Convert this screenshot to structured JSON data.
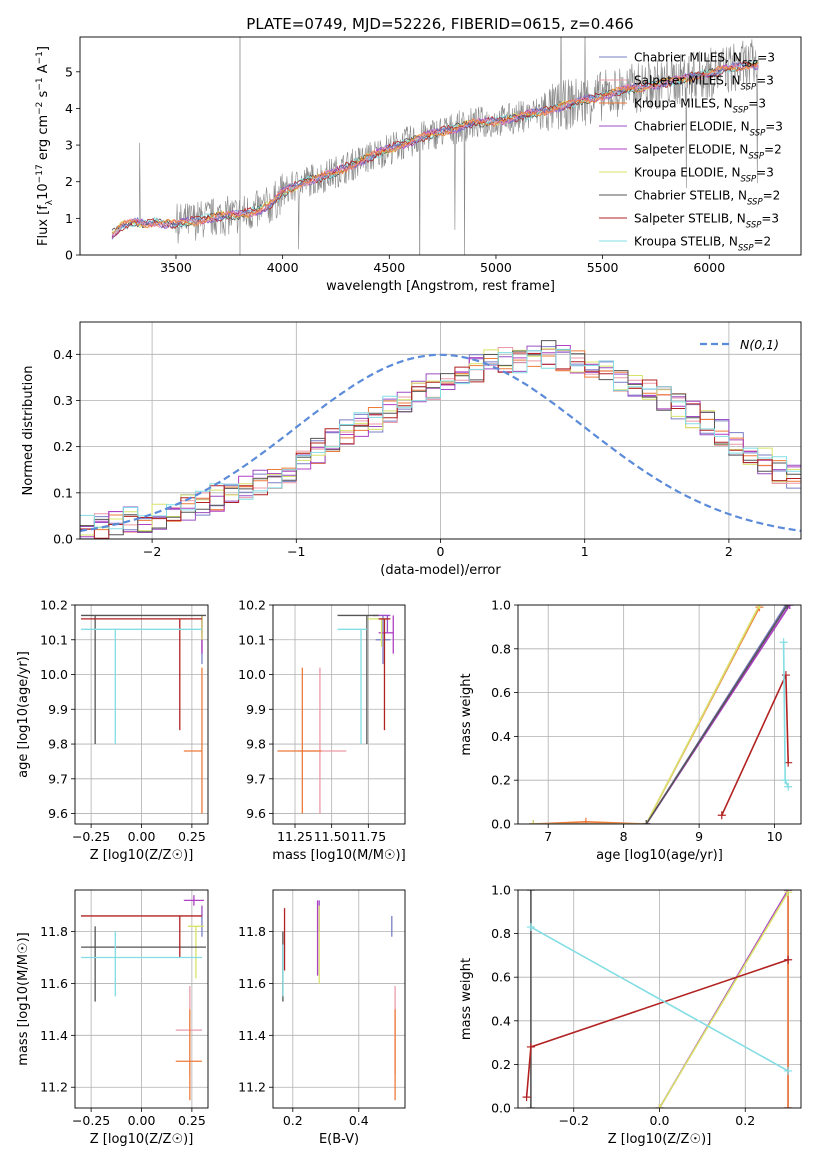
{
  "title": "PLATE=0749, MJD=52226, FIBERID=0615, z=0.466",
  "colors": {
    "Chabrier MILES": "#7a7fc8",
    "Salpeter MILES": "#ec9aa8",
    "Kroupa MILES": "#ee7b3a",
    "Chabrier ELODIE": "#9a4fc4",
    "Salpeter ELODIE": "#b040c4",
    "Kroupa ELODIE": "#d8e36a",
    "Chabrier STELIB": "#555555",
    "Salpeter STELIB": "#b22222",
    "Kroupa STELIB": "#82dde4",
    "data": "#888888",
    "gaussian": "#5b8bd9"
  },
  "chart_data": [
    {
      "id": "spectrum",
      "type": "line",
      "title": "PLATE=0749, MJD=52226, FIBERID=0615, z=0.466",
      "xlabel": "wavelength [Angstrom, rest frame]",
      "ylabel": "Flux [f_λ 10^-17 erg cm^-2 s^-1 A^-1]",
      "xlim": [
        3050,
        6430
      ],
      "ylim": [
        0,
        5.95
      ],
      "xticks": [
        3500,
        4000,
        4500,
        5000,
        5500,
        6000
      ],
      "yticks": [
        0,
        1,
        2,
        3,
        4,
        5
      ],
      "legend_position": "upper-right",
      "legend": [
        {
          "name": "Chabrier MILES",
          "nssp": "3"
        },
        {
          "name": "Salpeter MILES",
          "nssp": "3"
        },
        {
          "name": "Kroupa MILES",
          "nssp": "3"
        },
        {
          "name": "Chabrier ELODIE",
          "nssp": "3"
        },
        {
          "name": "Salpeter ELODIE",
          "nssp": "2"
        },
        {
          "name": "Kroupa ELODIE",
          "nssp": "3"
        },
        {
          "name": "Chabrier STELIB",
          "nssp": "2"
        },
        {
          "name": "Salpeter STELIB",
          "nssp": "3"
        },
        {
          "name": "Kroupa STELIB",
          "nssp": "2"
        }
      ],
      "model_continuum": {
        "x": [
          3200,
          3250,
          3300,
          3350,
          3400,
          3450,
          3500,
          3600,
          3700,
          3800,
          3900,
          3950,
          4000,
          4100,
          4200,
          4300,
          4400,
          4500,
          4600,
          4700,
          4800,
          4900,
          5000,
          5100,
          5200,
          5300,
          5400,
          5500,
          5600,
          5700,
          5800,
          5900,
          6000,
          6100,
          6200
        ],
        "y": [
          0.55,
          0.8,
          0.9,
          0.85,
          0.9,
          0.85,
          0.85,
          0.95,
          1.05,
          1.1,
          1.25,
          1.4,
          1.7,
          2.0,
          2.15,
          2.4,
          2.65,
          2.9,
          3.1,
          3.3,
          3.45,
          3.6,
          3.65,
          3.75,
          3.9,
          4.05,
          4.2,
          4.35,
          4.5,
          4.6,
          4.7,
          4.85,
          4.95,
          5.1,
          5.2
        ]
      }
    },
    {
      "id": "residuals",
      "type": "histogram",
      "xlabel": "(data-model)/error",
      "ylabel": "Normed distribution",
      "xlim": [
        -2.5,
        2.5
      ],
      "ylim": [
        0,
        0.47
      ],
      "xticks": [
        -2,
        -1,
        0,
        1,
        2
      ],
      "yticks": [
        0.0,
        0.1,
        0.2,
        0.3,
        0.4
      ],
      "legend_position": "upper-right",
      "gaussian_label": "N(0,1)",
      "bin_width": 0.1,
      "base_values": [
        0.03,
        0.03,
        0.03,
        0.04,
        0.04,
        0.05,
        0.06,
        0.07,
        0.08,
        0.09,
        0.1,
        0.11,
        0.12,
        0.13,
        0.15,
        0.17,
        0.19,
        0.21,
        0.23,
        0.25,
        0.26,
        0.28,
        0.3,
        0.32,
        0.33,
        0.34,
        0.35,
        0.37,
        0.38,
        0.39,
        0.39,
        0.39,
        0.4,
        0.39,
        0.38,
        0.37,
        0.36,
        0.34,
        0.33,
        0.32,
        0.3,
        0.29,
        0.27,
        0.25,
        0.23,
        0.21,
        0.19,
        0.17,
        0.15,
        0.13
      ]
    },
    {
      "id": "age-vs-Z",
      "type": "errorbar",
      "xlabel": "Z [log10(Z/Z☉)]",
      "ylabel": "age [log10(age/yr)]",
      "xlim": [
        -0.33,
        0.33
      ],
      "ylim": [
        9.57,
        10.2
      ],
      "xticks": [
        -0.25,
        0.0,
        0.25
      ],
      "yticks": [
        9.6,
        9.7,
        9.8,
        9.9,
        10.0,
        10.1,
        10.2
      ],
      "points": [
        {
          "model": "Chabrier MILES",
          "x": 0.3,
          "y": 10.1,
          "xerr": [
            0.0,
            0.0
          ],
          "yerr": [
            0.07,
            0.07
          ]
        },
        {
          "model": "Salpeter MILES",
          "x": 0.3,
          "y": 10.12,
          "xerr": [
            0.0,
            0.0
          ],
          "yerr": [
            0.05,
            0.05
          ]
        },
        {
          "model": "Kroupa MILES",
          "x": 0.3,
          "y": 9.78,
          "xerr": [
            0.09,
            0.0
          ],
          "yerr": [
            0.18,
            0.24
          ]
        },
        {
          "model": "Chabrier ELODIE",
          "x": 0.3,
          "y": 10.17,
          "xerr": [
            0.0,
            0.0
          ],
          "yerr": [
            0.05,
            0.0
          ]
        },
        {
          "model": "Salpeter ELODIE",
          "x": 0.3,
          "y": 10.12,
          "xerr": [
            0.0,
            0.0
          ],
          "yerr": [
            0.06,
            0.05
          ]
        },
        {
          "model": "Kroupa ELODIE",
          "x": 0.3,
          "y": 10.17,
          "xerr": [
            0.0,
            0.0
          ],
          "yerr": [
            0.07,
            0.0
          ]
        },
        {
          "model": "Chabrier STELIB",
          "x": -0.23,
          "y": 10.17,
          "xerr": [
            0.07,
            0.55
          ],
          "yerr": [
            0.37,
            0.0
          ]
        },
        {
          "model": "Salpeter STELIB",
          "x": 0.19,
          "y": 10.16,
          "xerr": [
            0.49,
            0.11
          ],
          "yerr": [
            0.32,
            0.0
          ]
        },
        {
          "model": "Kroupa STELIB",
          "x": -0.13,
          "y": 10.13,
          "xerr": [
            0.17,
            0.43
          ],
          "yerr": [
            0.33,
            0.0
          ]
        }
      ]
    },
    {
      "id": "age-vs-mass",
      "type": "errorbar",
      "xlabel": "mass [log10(M/M☉)]",
      "ylabel": "",
      "xlim": [
        11.1,
        12.0
      ],
      "ylim": [
        9.57,
        10.2
      ],
      "xticks": [
        11.25,
        11.5,
        11.75
      ],
      "yticks": [
        9.6,
        9.7,
        9.8,
        9.9,
        10.0,
        10.1,
        10.2
      ],
      "points": [
        {
          "model": "Chabrier MILES",
          "x": 11.85,
          "y": 10.1,
          "xerr": [
            0.05,
            0.05
          ],
          "yerr": [
            0.07,
            0.07
          ]
        },
        {
          "model": "Salpeter MILES",
          "x": 11.42,
          "y": 9.78,
          "xerr": [
            0.15,
            0.18
          ],
          "yerr": [
            0.18,
            0.24
          ]
        },
        {
          "model": "Kroupa MILES",
          "x": 11.3,
          "y": 9.78,
          "xerr": [
            0.17,
            0.13
          ],
          "yerr": [
            0.18,
            0.24
          ]
        },
        {
          "model": "Chabrier ELODIE",
          "x": 11.88,
          "y": 10.17,
          "xerr": [
            0.1,
            0.02
          ],
          "yerr": [
            0.05,
            0.0
          ]
        },
        {
          "model": "Salpeter ELODIE",
          "x": 11.92,
          "y": 10.12,
          "xerr": [
            0.1,
            0.0
          ],
          "yerr": [
            0.06,
            0.05
          ]
        },
        {
          "model": "Kroupa ELODIE",
          "x": 11.84,
          "y": 10.16,
          "xerr": [
            0.1,
            0.02
          ],
          "yerr": [
            0.08,
            0.0
          ]
        },
        {
          "model": "Chabrier STELIB",
          "x": 11.74,
          "y": 10.17,
          "xerr": [
            0.2,
            0.08
          ],
          "yerr": [
            0.37,
            0.0
          ]
        },
        {
          "model": "Salpeter STELIB",
          "x": 11.86,
          "y": 10.16,
          "xerr": [
            0.04,
            0.04
          ],
          "yerr": [
            0.32,
            0.0
          ]
        },
        {
          "model": "Kroupa STELIB",
          "x": 11.7,
          "y": 10.13,
          "xerr": [
            0.16,
            0.04
          ],
          "yerr": [
            0.33,
            0.0
          ]
        }
      ]
    },
    {
      "id": "weight-vs-age",
      "type": "line",
      "xlabel": "age [log10(age/yr)]",
      "ylabel": "mass weight",
      "xlim": [
        6.6,
        10.35
      ],
      "ylim": [
        0,
        1
      ],
      "xticks": [
        7,
        8,
        9,
        10
      ],
      "yticks": [
        0.0,
        0.2,
        0.4,
        0.6,
        0.8,
        1.0
      ],
      "series": [
        {
          "model": "Chabrier MILES",
          "x": [
            6.8,
            7.5,
            8.3,
            10.15
          ],
          "y": [
            0.0,
            0.0,
            0.0,
            1.0
          ]
        },
        {
          "model": "Salpeter MILES",
          "x": [
            6.8,
            7.5,
            8.3,
            9.8
          ],
          "y": [
            0.0,
            0.0,
            0.0,
            1.0
          ]
        },
        {
          "model": "Kroupa MILES",
          "x": [
            6.8,
            7.5,
            8.3,
            9.8
          ],
          "y": [
            0.0,
            0.01,
            0.0,
            0.99
          ]
        },
        {
          "model": "Chabrier ELODIE",
          "x": [
            6.8,
            8.3,
            10.2
          ],
          "y": [
            0.0,
            0.0,
            1.0
          ]
        },
        {
          "model": "Salpeter ELODIE",
          "x": [
            8.3,
            10.2
          ],
          "y": [
            0.0,
            1.0
          ]
        },
        {
          "model": "Kroupa ELODIE",
          "x": [
            6.8,
            8.3,
            9.8
          ],
          "y": [
            0.0,
            0.0,
            1.0
          ]
        },
        {
          "model": "Chabrier STELIB",
          "x": [
            8.3,
            10.17
          ],
          "y": [
            0.0,
            1.0
          ]
        },
        {
          "model": "Salpeter STELIB",
          "x": [
            9.3,
            10.15,
            10.18
          ],
          "y": [
            0.04,
            0.68,
            0.28
          ]
        },
        {
          "model": "Kroupa STELIB",
          "x": [
            10.12,
            10.14,
            10.18
          ],
          "y": [
            0.83,
            0.2,
            0.17
          ]
        }
      ]
    },
    {
      "id": "mass-vs-Z",
      "type": "errorbar",
      "xlabel": "Z [log10(Z/Z☉)]",
      "ylabel": "mass [log10(M/M☉)]",
      "xlim": [
        -0.33,
        0.33
      ],
      "ylim": [
        11.12,
        11.96
      ],
      "xticks": [
        -0.25,
        0.0,
        0.25
      ],
      "yticks": [
        11.2,
        11.4,
        11.6,
        11.8
      ],
      "points": [
        {
          "model": "Chabrier MILES",
          "x": 0.3,
          "y": 11.82,
          "xerr": [
            0.0,
            0.0
          ],
          "yerr": [
            0.04,
            0.04
          ]
        },
        {
          "model": "Salpeter MILES",
          "x": 0.24,
          "y": 11.42,
          "xerr": [
            0.07,
            0.06
          ],
          "yerr": [
            0.17,
            0.17
          ]
        },
        {
          "model": "Kroupa MILES",
          "x": 0.24,
          "y": 11.3,
          "xerr": [
            0.07,
            0.06
          ],
          "yerr": [
            0.15,
            0.2
          ]
        },
        {
          "model": "Chabrier ELODIE",
          "x": 0.3,
          "y": 11.88,
          "xerr": [
            0.0,
            0.0
          ],
          "yerr": [
            0.02,
            0.02
          ]
        },
        {
          "model": "Salpeter ELODIE",
          "x": 0.26,
          "y": 11.92,
          "xerr": [
            0.05,
            0.05
          ],
          "yerr": [
            0.02,
            0.02
          ]
        },
        {
          "model": "Kroupa ELODIE",
          "x": 0.27,
          "y": 11.82,
          "xerr": [
            0.04,
            0.04
          ],
          "yerr": [
            0.2,
            0.0
          ]
        },
        {
          "model": "Chabrier STELIB",
          "x": -0.23,
          "y": 11.74,
          "xerr": [
            0.07,
            0.55
          ],
          "yerr": [
            0.21,
            0.08
          ]
        },
        {
          "model": "Salpeter STELIB",
          "x": 0.19,
          "y": 11.86,
          "xerr": [
            0.49,
            0.11
          ],
          "yerr": [
            0.16,
            0.0
          ]
        },
        {
          "model": "Kroupa STELIB",
          "x": -0.13,
          "y": 11.7,
          "xerr": [
            0.17,
            0.43
          ],
          "yerr": [
            0.15,
            0.1
          ]
        }
      ]
    },
    {
      "id": "mass-vs-ebv",
      "type": "errorbar",
      "xlabel": "E(B-V)",
      "ylabel": "",
      "xlim": [
        0.14,
        0.54
      ],
      "ylim": [
        11.12,
        11.96
      ],
      "xticks": [
        0.2,
        0.4
      ],
      "yticks": [
        11.2,
        11.4,
        11.6,
        11.8
      ],
      "points": [
        {
          "model": "Chabrier MILES",
          "x": 0.5,
          "y": 11.82,
          "xerr": [
            0.0,
            0.0
          ],
          "yerr": [
            0.04,
            0.04
          ]
        },
        {
          "model": "Salpeter MILES",
          "x": 0.51,
          "y": 11.42,
          "xerr": [
            0.0,
            0.0
          ],
          "yerr": [
            0.17,
            0.17
          ]
        },
        {
          "model": "Kroupa MILES",
          "x": 0.51,
          "y": 11.3,
          "xerr": [
            0.0,
            0.0
          ],
          "yerr": [
            0.15,
            0.2
          ]
        },
        {
          "model": "Chabrier ELODIE",
          "x": 0.28,
          "y": 11.86,
          "xerr": [
            0.0,
            0.0
          ],
          "yerr": [
            0.06,
            0.06
          ]
        },
        {
          "model": "Salpeter ELODIE",
          "x": 0.275,
          "y": 11.8,
          "xerr": [
            0.0,
            0.0
          ],
          "yerr": [
            0.17,
            0.12
          ]
        },
        {
          "model": "Kroupa ELODIE",
          "x": 0.28,
          "y": 11.7,
          "xerr": [
            0.0,
            0.0
          ],
          "yerr": [
            0.1,
            0.2
          ]
        },
        {
          "model": "Chabrier STELIB",
          "x": 0.17,
          "y": 11.7,
          "xerr": [
            0.0,
            0.0
          ],
          "yerr": [
            0.17,
            0.1
          ]
        },
        {
          "model": "Salpeter STELIB",
          "x": 0.175,
          "y": 11.8,
          "xerr": [
            0.0,
            0.0
          ],
          "yerr": [
            0.15,
            0.09
          ]
        },
        {
          "model": "Kroupa STELIB",
          "x": 0.17,
          "y": 11.65,
          "xerr": [
            0.0,
            0.0
          ],
          "yerr": [
            0.1,
            0.1
          ]
        }
      ]
    },
    {
      "id": "weight-vs-Z",
      "type": "line",
      "xlabel": "Z [log10(Z/Z☉)]",
      "ylabel": "mass weight",
      "xlim": [
        -0.33,
        0.33
      ],
      "ylim": [
        0,
        1
      ],
      "xticks": [
        -0.2,
        0.0,
        0.2
      ],
      "yticks": [
        0.0,
        0.2,
        0.4,
        0.6,
        0.8,
        1.0
      ],
      "series": [
        {
          "model": "Chabrier MILES",
          "x": [
            0.3,
            0.3
          ],
          "y": [
            0.0,
            1.0
          ]
        },
        {
          "model": "Salpeter MILES",
          "x": [
            0.3,
            0.3
          ],
          "y": [
            0.0,
            1.0
          ]
        },
        {
          "model": "Kroupa MILES",
          "x": [
            0.3,
            0.3
          ],
          "y": [
            0.0,
            1.0
          ]
        },
        {
          "model": "Chabrier ELODIE",
          "x": [
            0.0,
            0.3
          ],
          "y": [
            0.0,
            1.0
          ]
        },
        {
          "model": "Salpeter ELODIE",
          "x": [
            0.0,
            0.3
          ],
          "y": [
            0.0,
            1.0
          ]
        },
        {
          "model": "Kroupa ELODIE",
          "x": [
            0.0,
            0.3
          ],
          "y": [
            0.0,
            0.99
          ]
        },
        {
          "model": "Chabrier STELIB",
          "x": [
            -0.3,
            -0.3
          ],
          "y": [
            0.0,
            1.0
          ]
        },
        {
          "model": "Salpeter STELIB",
          "x": [
            -0.31,
            -0.3,
            0.3
          ],
          "y": [
            0.05,
            0.28,
            0.68
          ]
        },
        {
          "model": "Kroupa STELIB",
          "x": [
            -0.3,
            0.3
          ],
          "y": [
            0.83,
            0.17
          ]
        }
      ]
    }
  ]
}
